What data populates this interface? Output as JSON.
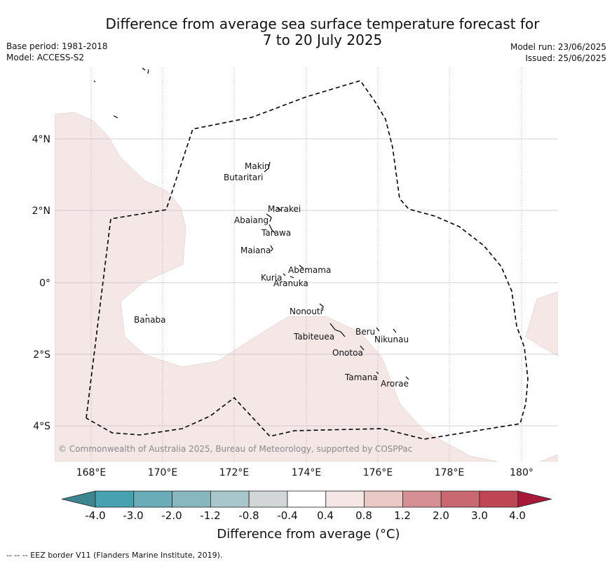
{
  "title_line1": "Difference from average sea surface temperature forecast for",
  "title_line2": "7 to 20 July 2025",
  "base_period": "Base period: 1981-2018",
  "model": "Model: ACCESS-S2",
  "model_run": "Model run: 23/06/2025",
  "issued": "Issued: 25/06/2025",
  "copyright": "© Commonwealth of Australia 2025, Bureau of Meteorology, supported by COSPPac",
  "lon_ticks": [
    "168°E",
    "170°E",
    "172°E",
    "174°E",
    "176°E",
    "178°E",
    "180°"
  ],
  "lat_ticks": [
    "4°N",
    "2°N",
    "0°",
    "2°S",
    "4°S"
  ],
  "islands": [
    {
      "name": "Makin"
    },
    {
      "name": "Butaritari"
    },
    {
      "name": "Marakei"
    },
    {
      "name": "Abaiang"
    },
    {
      "name": "Tarawa"
    },
    {
      "name": "Maiana"
    },
    {
      "name": "Abemama"
    },
    {
      "name": "Kuria"
    },
    {
      "name": "Aranuka"
    },
    {
      "name": "Banaba"
    },
    {
      "name": "Nonouti"
    },
    {
      "name": "Tabiteuea"
    },
    {
      "name": "Beru"
    },
    {
      "name": "Nikunau"
    },
    {
      "name": "Onotoa"
    },
    {
      "name": "Tamana"
    },
    {
      "name": "Arorae"
    }
  ],
  "colorbar": {
    "labels": [
      "-4.0",
      "-3.0",
      "-2.0",
      "-1.2",
      "-0.8",
      "-0.4",
      "0.4",
      "0.8",
      "1.2",
      "2.0",
      "3.0",
      "4.0"
    ],
    "colors": [
      "#3d8591",
      "#47a2b0",
      "#6aadb9",
      "#89b7c0",
      "#a7c7cb",
      "#d3d6d6",
      "#ffffff",
      "#f5e7e6",
      "#e8c9c6",
      "#d58f95",
      "#ca6872",
      "#c04555",
      "#a8183a"
    ],
    "title": "Difference from average (°C)"
  },
  "anomaly_fill_color": "#f5e7e6",
  "footer": "--  --  -- EEZ border V11 (Flanders Marine Institute, 2019)."
}
